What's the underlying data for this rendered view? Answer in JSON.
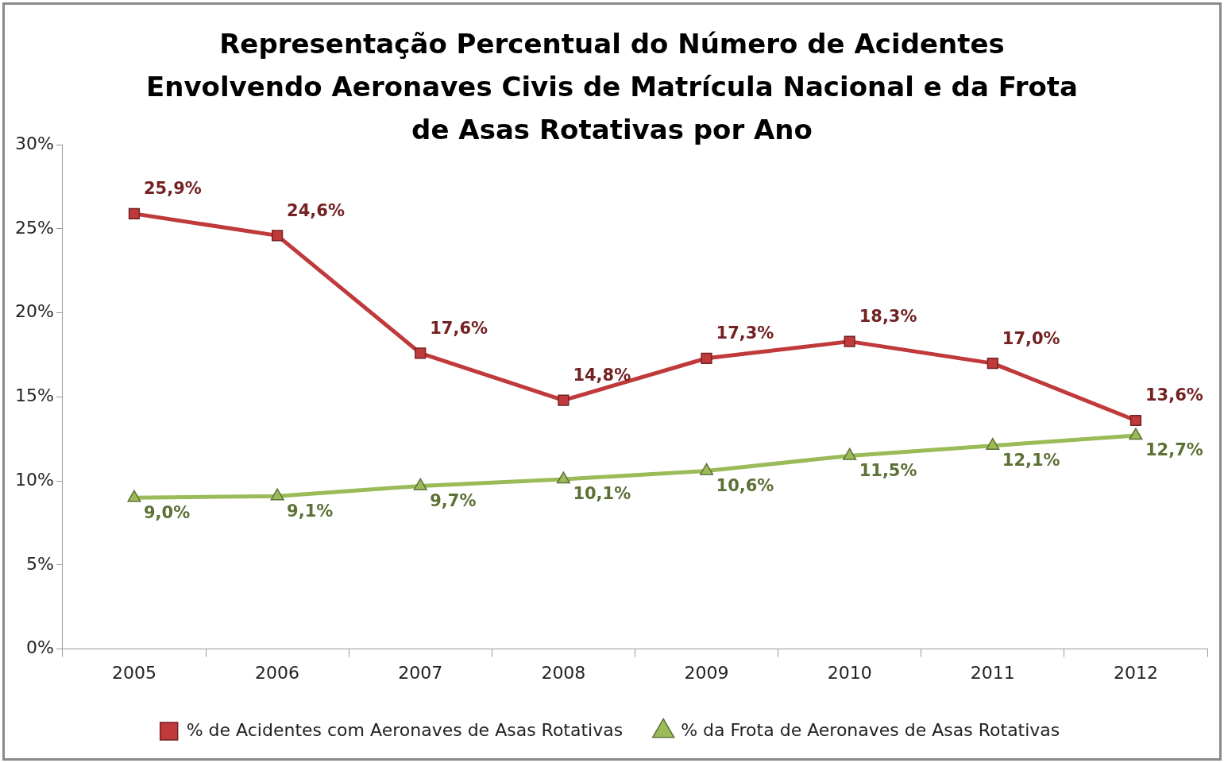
{
  "chart_data": {
    "type": "line",
    "title": "Representação Percentual do Número de Acidentes Envolvendo Aeronaves Civis de Matrícula Nacional e da Frota de Asas Rotativas por Ano",
    "categories": [
      "2005",
      "2006",
      "2007",
      "2008",
      "2009",
      "2010",
      "2011",
      "2012"
    ],
    "series": [
      {
        "name": "% de Acidentes com Aeronaves de Asas Rotativas",
        "color": "#c0393b",
        "marker": "square",
        "values": [
          25.9,
          24.6,
          17.6,
          14.8,
          17.3,
          18.3,
          17.0,
          13.6
        ],
        "value_labels": [
          "25,9%",
          "24,6%",
          "17,6%",
          "14,8%",
          "17,3%",
          "18,3%",
          "17,0%",
          "13,6%"
        ]
      },
      {
        "name": "% da Frota de Aeronaves de Asas Rotativas",
        "color": "#9bbb59",
        "marker": "triangle",
        "values": [
          9.0,
          9.1,
          9.7,
          10.1,
          10.6,
          11.5,
          12.1,
          12.7
        ],
        "value_labels": [
          "9,0%",
          "9,1%",
          "9,7%",
          "10,1%",
          "10,6%",
          "11,5%",
          "12,1%",
          "12,7%"
        ]
      }
    ],
    "ylim": [
      0,
      30
    ],
    "yticks": [
      {
        "value": 0,
        "label": "0%"
      },
      {
        "value": 5,
        "label": "5%"
      },
      {
        "value": 10,
        "label": "10%"
      },
      {
        "value": 15,
        "label": "15%"
      },
      {
        "value": 20,
        "label": "20%"
      },
      {
        "value": 25,
        "label": "25%"
      },
      {
        "value": 30,
        "label": "30%"
      }
    ],
    "grid": false,
    "legend": "bottom",
    "line_style": "solid"
  }
}
